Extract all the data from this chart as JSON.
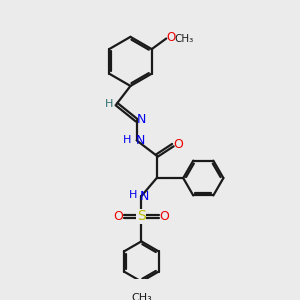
{
  "bg_color": "#ebebeb",
  "bond_color": "#1a1a1a",
  "N_color": "#0000ee",
  "O_color": "#ee0000",
  "S_color": "#bbbb00",
  "C_color": "#2d7070",
  "lw": 1.6,
  "figsize": [
    3.0,
    3.0
  ],
  "dpi": 100,
  "xlim": [
    0.0,
    10.0
  ],
  "ylim": [
    0.2,
    10.2
  ]
}
